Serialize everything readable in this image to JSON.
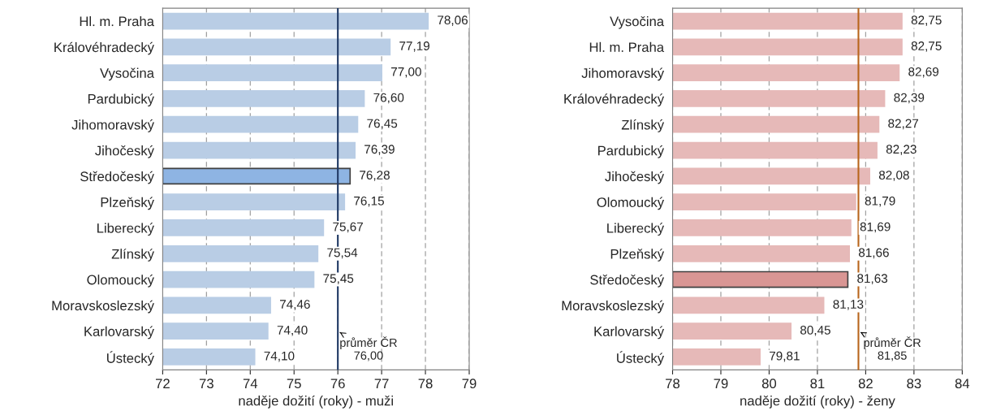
{
  "chart_data": [
    {
      "type": "bar",
      "orientation": "horizontal",
      "xlabel": "naděje dožití (roky) - muži",
      "categories": [
        "Hl. m. Praha",
        "Královéhradecký",
        "Vysočina",
        "Pardubický",
        "Jihomoravský",
        "Jihočeský",
        "Středočeský",
        "Plzeňský",
        "Liberecký",
        "Zlínský",
        "Olomoucký",
        "Moravskoslezský",
        "Karlovarský",
        "Ústecký"
      ],
      "values": [
        78.06,
        77.19,
        77.0,
        76.6,
        76.45,
        76.39,
        76.28,
        76.15,
        75.67,
        75.54,
        75.45,
        74.46,
        74.4,
        74.1
      ],
      "value_labels": [
        "78,06",
        "77,19",
        "77,00",
        "76,60",
        "76,45",
        "76,39",
        "76,28",
        "76,15",
        "75,67",
        "75,54",
        "75,45",
        "74,46",
        "74,40",
        "74,10"
      ],
      "colors": [
        "#b9cde5",
        "#b9cde5",
        "#b9cde5",
        "#b9cde5",
        "#b9cde5",
        "#b9cde5",
        "#8eb4e3",
        "#b9cde5",
        "#b9cde5",
        "#b9cde5",
        "#b9cde5",
        "#b9cde5",
        "#b9cde5",
        "#b9cde5"
      ],
      "xlim": [
        72,
        79
      ],
      "xticks": [
        72,
        73,
        74,
        75,
        76,
        77,
        78,
        79
      ],
      "grid": "x",
      "ref_lines": [
        {
          "axis": "x",
          "value": 76.0,
          "label": "průměr ČR\n76,00",
          "color": "#1f3864"
        }
      ]
    },
    {
      "type": "bar",
      "orientation": "horizontal",
      "xlabel": "naděje dožití (roky) - ženy",
      "categories": [
        "Vysočina",
        "Hl. m. Praha",
        "Jihomoravský",
        "Královéhradecký",
        "Zlínský",
        "Pardubický",
        "Jihočeský",
        "Olomoucký",
        "Liberecký",
        "Plzeňský",
        "Středočeský",
        "Moravskoslezský",
        "Karlovarský",
        "Ústecký"
      ],
      "values": [
        82.75,
        82.75,
        82.69,
        82.39,
        82.27,
        82.23,
        82.08,
        81.79,
        81.69,
        81.66,
        81.63,
        81.13,
        80.45,
        79.81
      ],
      "value_labels": [
        "82,75",
        "82,75",
        "82,69",
        "82,39",
        "82,27",
        "82,23",
        "82,08",
        "81,79",
        "81,69",
        "81,66",
        "81,63",
        "81,13",
        "80,45",
        "79,81"
      ],
      "colors": [
        "#e6b9b8",
        "#e6b9b8",
        "#e6b9b8",
        "#e6b9b8",
        "#e6b9b8",
        "#e6b9b8",
        "#e6b9b8",
        "#e6b9b8",
        "#e6b9b8",
        "#e6b9b8",
        "#d99694",
        "#e6b9b8",
        "#e6b9b8",
        "#e6b9b8"
      ],
      "xlim": [
        78,
        84
      ],
      "xticks": [
        78,
        79,
        80,
        81,
        82,
        83,
        84
      ],
      "grid": "x",
      "ref_lines": [
        {
          "axis": "x",
          "value": 81.85,
          "label": "průměr ČR\n81,85",
          "color": "#b8651b"
        }
      ]
    }
  ]
}
